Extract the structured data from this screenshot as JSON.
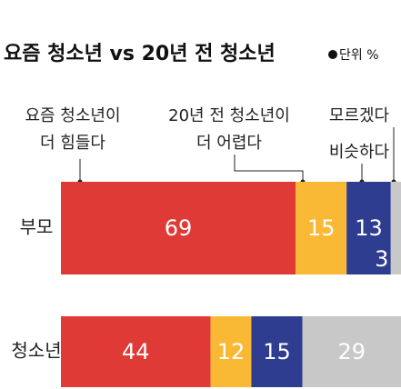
{
  "chart_data": {
    "type": "stacked-bar-horizontal",
    "title": "요즘 청소년 vs 20년 전 청소년",
    "unit": "단위 %",
    "categories": [
      "부모",
      "청소년"
    ],
    "series": [
      {
        "name": [
          "요즘 청소년이",
          "더 힘들다"
        ],
        "color": "#e03a36",
        "values": [
          69,
          44
        ]
      },
      {
        "name": [
          "20년 전 청소년이",
          "더 어렵다"
        ],
        "color": "#f9b935",
        "values": [
          15,
          12
        ]
      },
      {
        "name": [
          "비슷하다"
        ],
        "color": "#2e3d8f",
        "values": [
          13,
          15
        ]
      },
      {
        "name": [
          "모르겠다"
        ],
        "color": "#c8c8c8",
        "values": [
          3,
          29
        ]
      }
    ],
    "xlim": [
      0,
      100
    ]
  }
}
